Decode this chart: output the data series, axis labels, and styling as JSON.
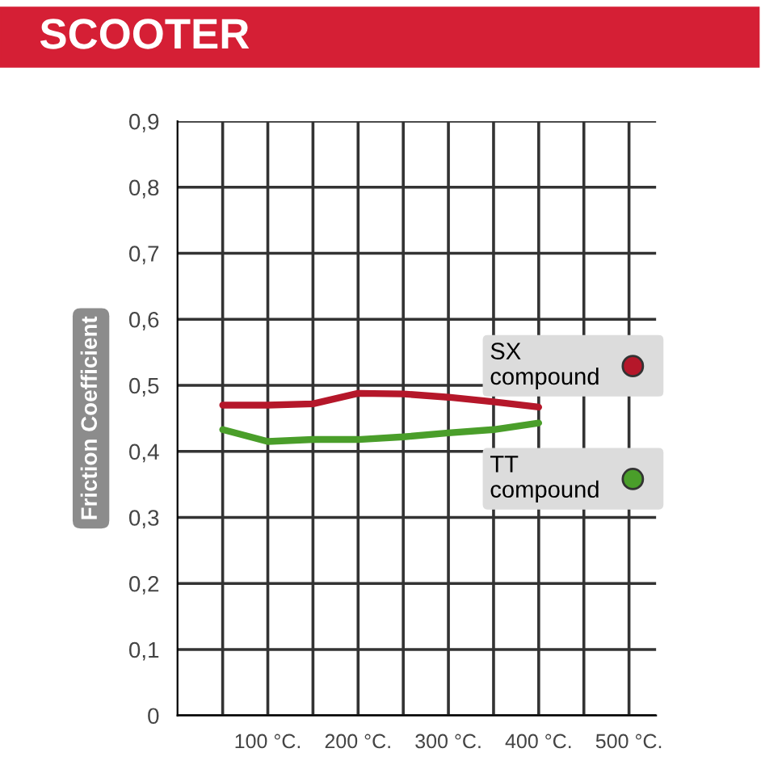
{
  "chart_data": {
    "type": "line",
    "title": "SCOOTER",
    "ylabel": "Friction Coefficient",
    "x": [
      50,
      100,
      150,
      200,
      250,
      300,
      350,
      400
    ],
    "series": [
      {
        "name": "SX\ncompound",
        "color": "#b5172a",
        "values": [
          0.47,
          0.47,
          0.472,
          0.488,
          0.487,
          0.482,
          0.475,
          0.467
        ]
      },
      {
        "name": "TT\ncompound",
        "color": "#4a9e2a",
        "values": [
          0.433,
          0.415,
          0.418,
          0.418,
          0.422,
          0.428,
          0.433,
          0.443
        ]
      }
    ],
    "xlim": [
      0,
      530
    ],
    "xticks": [
      {
        "value": 50,
        "label": null
      },
      {
        "value": 100,
        "label": "100 °C."
      },
      {
        "value": 150,
        "label": null
      },
      {
        "value": 200,
        "label": "200 °C."
      },
      {
        "value": 250,
        "label": null
      },
      {
        "value": 300,
        "label": "300 °C."
      },
      {
        "value": 350,
        "label": null
      },
      {
        "value": 400,
        "label": "400 °C."
      },
      {
        "value": 450,
        "label": null
      },
      {
        "value": 500,
        "label": "500 °C."
      }
    ],
    "ylim": [
      0,
      0.9
    ],
    "yticks": [
      0,
      {
        "value": 0.1,
        "label": "0,1"
      },
      {
        "value": 0.2,
        "label": "0,2"
      },
      {
        "value": 0.3,
        "label": "0,3"
      },
      {
        "value": 0.4,
        "label": "0,4"
      },
      {
        "value": 0.5,
        "label": "0,5"
      },
      {
        "value": 0.6,
        "label": "0,6"
      },
      {
        "value": 0.7,
        "label": "0,7"
      },
      {
        "value": 0.8,
        "label": "0,8"
      },
      {
        "value": 0.9,
        "label": "0,9"
      }
    ],
    "grid": true,
    "legend": "right",
    "marker": "none",
    "line_style": "solid"
  }
}
